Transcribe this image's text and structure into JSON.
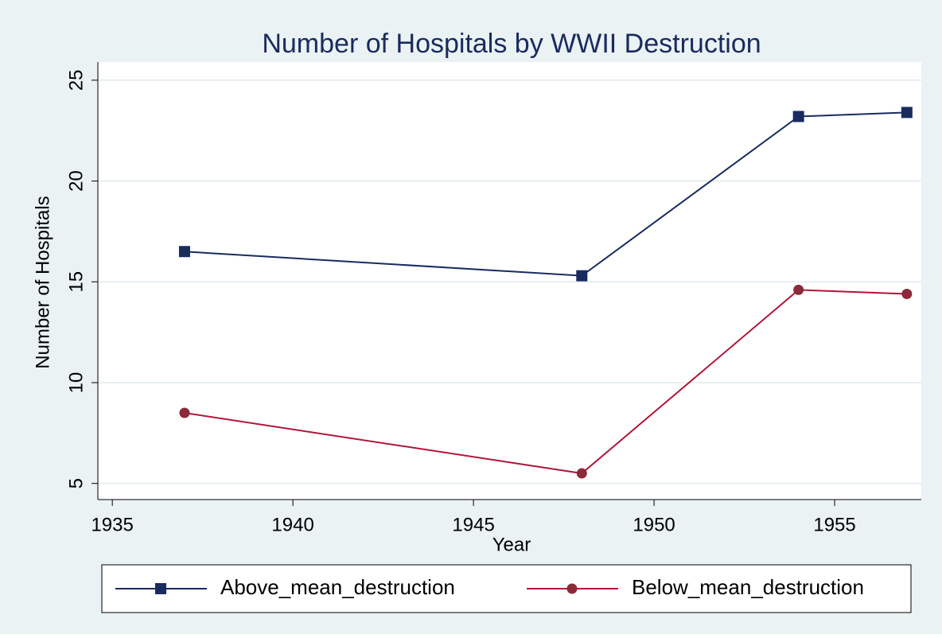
{
  "chart_data": {
    "type": "line",
    "title": "Number of Hospitals by WWII Destruction",
    "x_label": "Year",
    "y_label": "Number of Hospitals",
    "x": [
      1937,
      1948,
      1954,
      1957
    ],
    "series": [
      {
        "name": "Above_mean_destruction",
        "color": "#1a2b5e",
        "marker": "square",
        "values": [
          16.5,
          15.3,
          23.2,
          23.4
        ]
      },
      {
        "name": "Below_mean_destruction",
        "color": "#b0163a",
        "marker_color": "#8b2b3a",
        "marker": "circle",
        "values": [
          8.5,
          5.5,
          14.6,
          14.4
        ]
      }
    ],
    "xlim": [
      1934.6,
      1957.4
    ],
    "xticks": [
      1935,
      1940,
      1945,
      1950,
      1955
    ],
    "ylim": [
      4.2,
      25.9
    ],
    "yticks": [
      5,
      10,
      15,
      20,
      25
    ],
    "grid": true,
    "legend": "bottom"
  }
}
